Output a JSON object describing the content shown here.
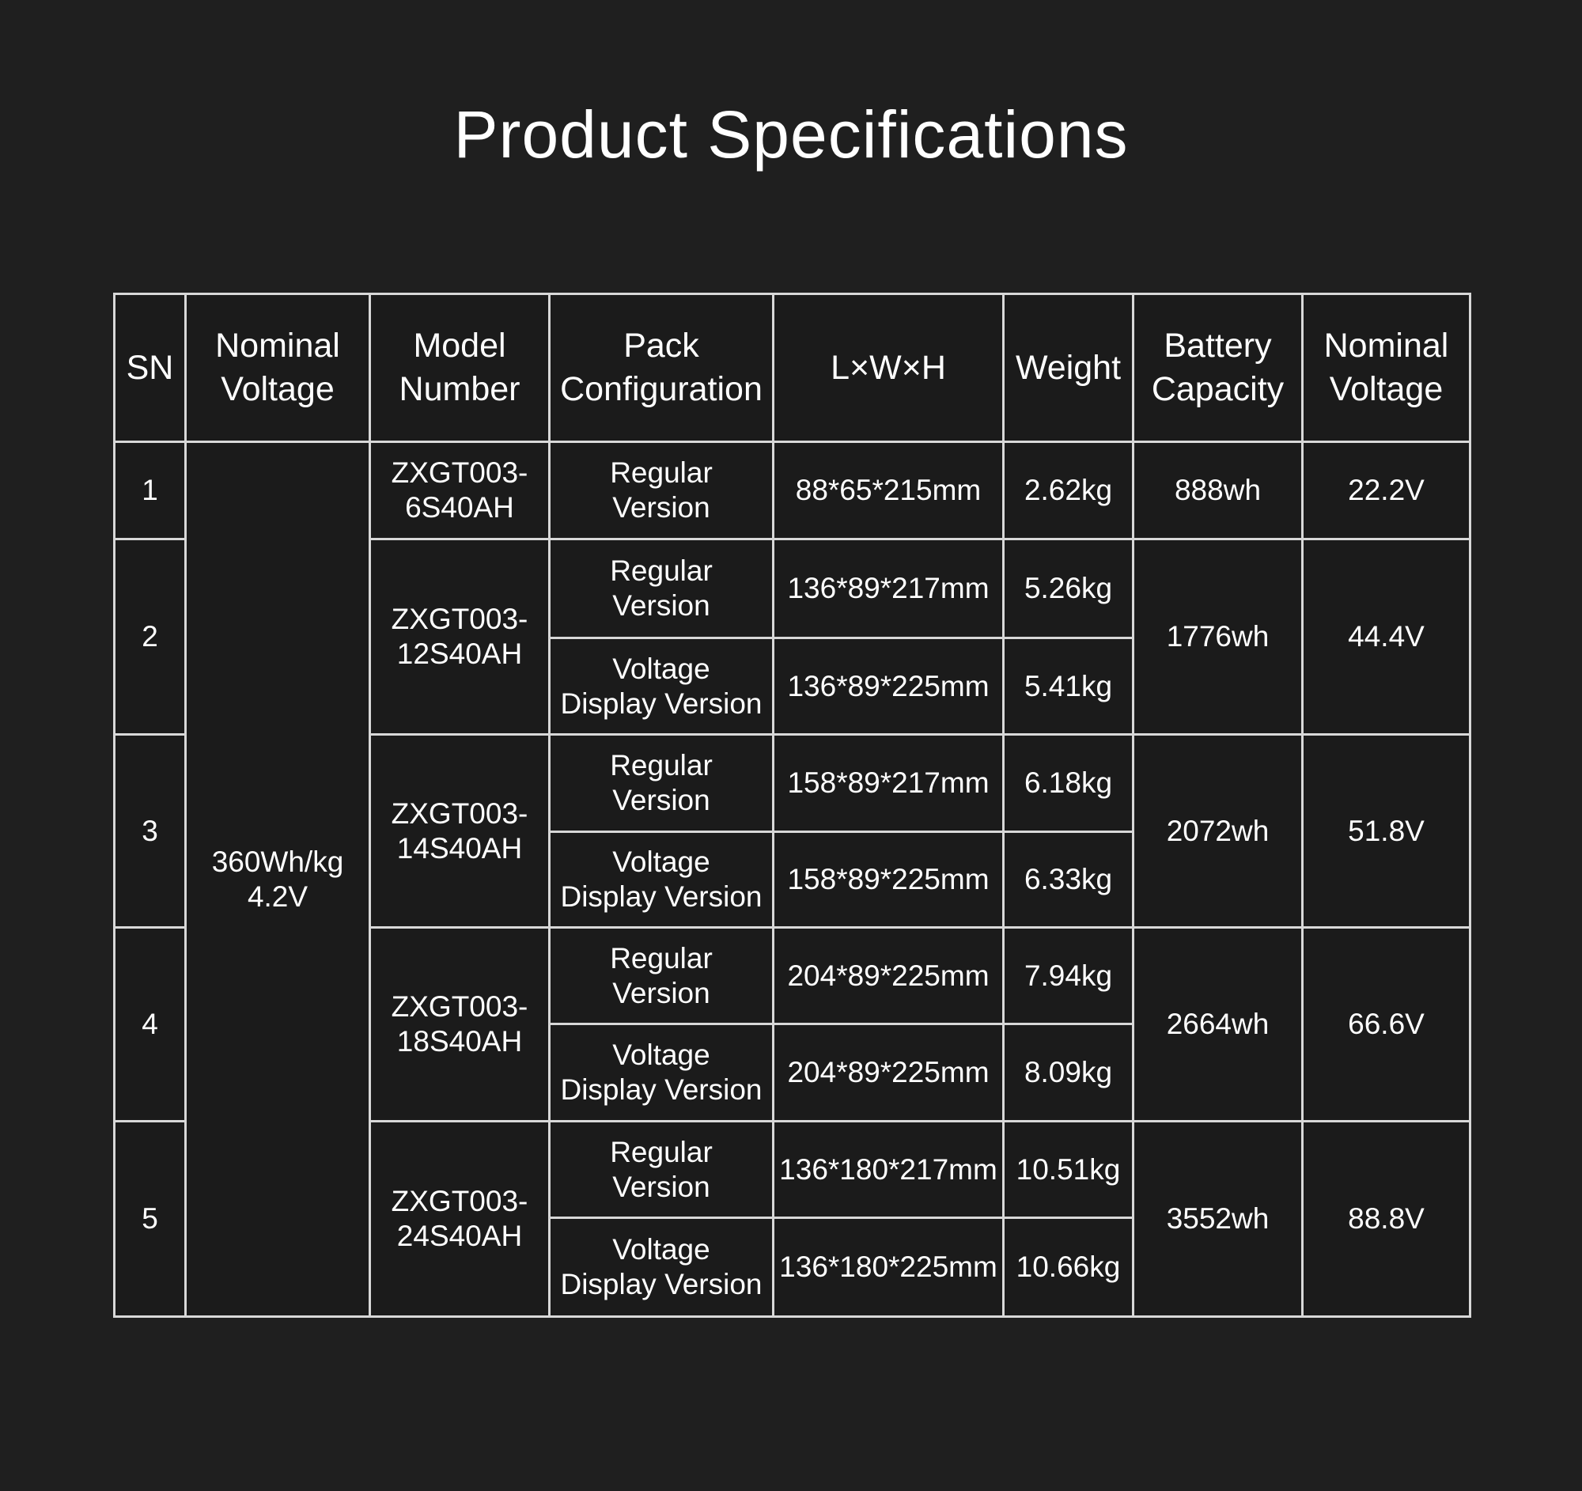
{
  "title": "Product Specifications",
  "headers": {
    "sn": "SN",
    "nominal_voltage_1": [
      "Nominal",
      "Voltage"
    ],
    "model_number": [
      "Model",
      "Number"
    ],
    "pack_configuration": [
      "Pack",
      "Configuration"
    ],
    "dimensions": "L×W×H",
    "weight": "Weight",
    "battery_capacity": [
      "Battery",
      "Capacity"
    ],
    "nominal_voltage_2": [
      "Nominal",
      "Voltage"
    ]
  },
  "shared_voltage": [
    "360Wh/kg",
    "4.2V"
  ],
  "rows": [
    {
      "sn": "1",
      "model": [
        "ZXGT003-",
        "6S40AH"
      ],
      "capacity": "888wh",
      "voltage": "22.2V",
      "variants": [
        {
          "config": [
            "Regular",
            "Version"
          ],
          "dims": "88*65*215mm",
          "weight": "2.62kg"
        }
      ]
    },
    {
      "sn": "2",
      "model": [
        "ZXGT003-",
        "12S40AH"
      ],
      "capacity": "1776wh",
      "voltage": "44.4V",
      "variants": [
        {
          "config": [
            "Regular",
            "Version"
          ],
          "dims": "136*89*217mm",
          "weight": "5.26kg"
        },
        {
          "config": [
            "Voltage",
            "Display Version"
          ],
          "dims": "136*89*225mm",
          "weight": "5.41kg"
        }
      ]
    },
    {
      "sn": "3",
      "model": [
        "ZXGT003-",
        "14S40AH"
      ],
      "capacity": "2072wh",
      "voltage": "51.8V",
      "variants": [
        {
          "config": [
            "Regular",
            "Version"
          ],
          "dims": "158*89*217mm",
          "weight": "6.18kg"
        },
        {
          "config": [
            "Voltage",
            "Display Version"
          ],
          "dims": "158*89*225mm",
          "weight": "6.33kg"
        }
      ]
    },
    {
      "sn": "4",
      "model": [
        "ZXGT003-",
        "18S40AH"
      ],
      "capacity": "2664wh",
      "voltage": "66.6V",
      "variants": [
        {
          "config": [
            "Regular",
            "Version"
          ],
          "dims": "204*89*225mm",
          "weight": "7.94kg"
        },
        {
          "config": [
            "Voltage",
            "Display Version"
          ],
          "dims": "204*89*225mm",
          "weight": "8.09kg"
        }
      ]
    },
    {
      "sn": "5",
      "model": [
        "ZXGT003-",
        "24S40AH"
      ],
      "capacity": "3552wh",
      "voltage": "88.8V",
      "variants": [
        {
          "config": [
            "Regular",
            "Version"
          ],
          "dims": "136*180*217mm",
          "weight": "10.51kg"
        },
        {
          "config": [
            "Voltage",
            "Display Version"
          ],
          "dims": "136*180*225mm",
          "weight": "10.66kg"
        }
      ]
    }
  ]
}
